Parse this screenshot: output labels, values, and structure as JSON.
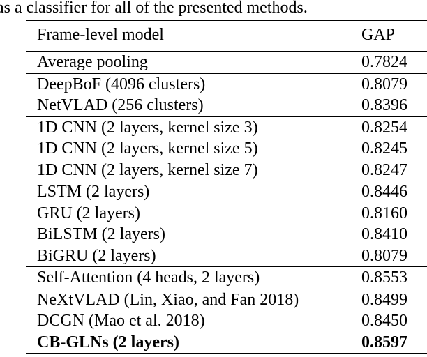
{
  "caption_fragment": "as a classifier for all of the presented methods.",
  "table": {
    "header": [
      "Frame-level model",
      "GAP"
    ],
    "groups": [
      [
        [
          "Average pooling",
          "0.7824"
        ]
      ],
      [
        [
          "DeepBoF (4096 clusters)",
          "0.8079"
        ],
        [
          "NetVLAD (256 clusters)",
          "0.8396"
        ]
      ],
      [
        [
          "1D CNN (2 layers, kernel size 3)",
          "0.8254"
        ],
        [
          "1D CNN (2 layers, kernel size 5)",
          "0.8245"
        ],
        [
          "1D CNN (2 layers, kernel size 7)",
          "0.8247"
        ]
      ],
      [
        [
          "LSTM (2 layers)",
          "0.8446"
        ],
        [
          "GRU (2 layers)",
          "0.8160"
        ],
        [
          "BiLSTM (2 layers)",
          "0.8410"
        ],
        [
          "BiGRU (2 layers)",
          "0.8079"
        ]
      ],
      [
        [
          "Self-Attention (4 heads, 2 layers)",
          "0.8553"
        ]
      ],
      [
        [
          "NeXtVLAD (Lin, Xiao, and Fan 2018)",
          "0.8499"
        ],
        [
          "DCGN (Mao et al. 2018)",
          "0.8450"
        ],
        [
          "CB-GLNs (2 layers)",
          "0.8597"
        ]
      ]
    ]
  }
}
